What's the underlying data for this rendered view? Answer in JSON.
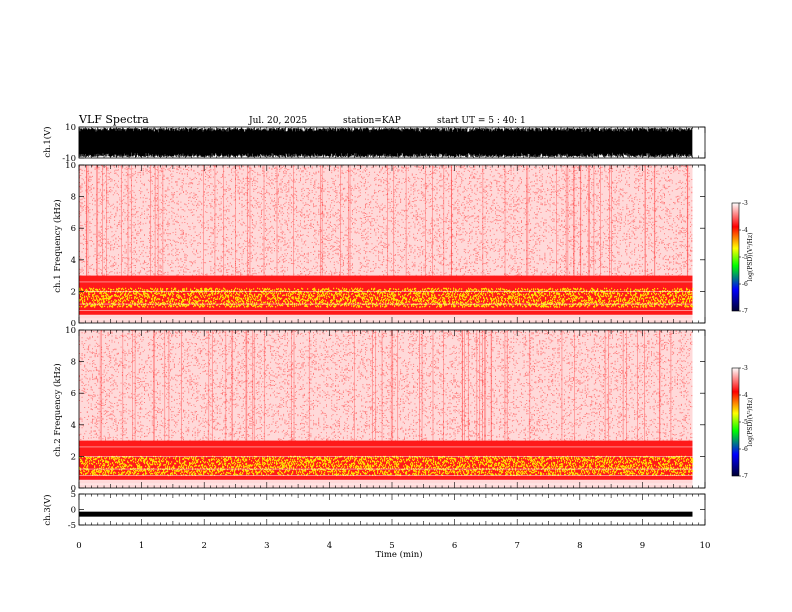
{
  "header": {
    "title": "VLF Spectra",
    "date": "Jul. 20, 2025",
    "station": "station=KAP",
    "start": "start UT =  5 : 40: 1"
  },
  "chart_data": {
    "type": "heatmap",
    "xlabel": "Time (min)",
    "xlim": [
      0,
      10
    ],
    "x_ticks": [
      0,
      1,
      2,
      3,
      4,
      5,
      6,
      7,
      8,
      9,
      10
    ],
    "data_end_min": 9.8,
    "panels": [
      {
        "id": "ch1_wave",
        "kind": "waveform",
        "ylabel": "ch.1(V)",
        "ylim": [
          -10,
          10
        ],
        "y_ticks": [
          10,
          -10
        ],
        "amplitude_range": [
          -10,
          10
        ]
      },
      {
        "id": "ch1_spec",
        "kind": "spectrogram",
        "ylabel": "ch.1 Frequency (kHz)",
        "ylim": [
          0,
          10
        ],
        "y_ticks": [
          0,
          2,
          4,
          6,
          8,
          10
        ],
        "intense_band_khz": [
          0.5,
          3
        ],
        "peak_band_khz": [
          1,
          2.2
        ]
      },
      {
        "id": "ch2_spec",
        "kind": "spectrogram",
        "ylabel": "ch.2 Frequency (kHz)",
        "ylim": [
          0,
          10
        ],
        "y_ticks": [
          0,
          2,
          4,
          6,
          8,
          10
        ],
        "intense_band_khz": [
          0.5,
          3
        ],
        "peak_band_khz": [
          0.8,
          2
        ]
      },
      {
        "id": "ch3_wave",
        "kind": "waveform",
        "ylabel": "ch.3(V)",
        "ylim": [
          -5,
          5
        ],
        "y_ticks": [
          5,
          0,
          -5
        ],
        "level_v": -1.5
      }
    ],
    "colorbar": {
      "label": "log(PSD)(V²/Hz)",
      "range": [
        -7,
        -3
      ],
      "ticks": [
        -3,
        -4,
        -5,
        -6,
        -7
      ],
      "colors": [
        "#ffffff",
        "#ff0000",
        "#ffff00",
        "#00ff00",
        "#0000ff",
        "#000033"
      ]
    }
  }
}
